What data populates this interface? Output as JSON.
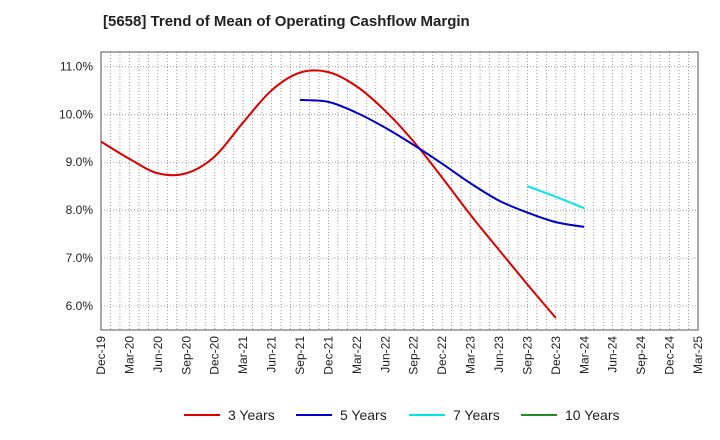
{
  "chart_data": {
    "type": "line",
    "title": "[5658]  Trend of Mean of Operating Cashflow Margin",
    "xlabel": "",
    "ylabel": "",
    "ylim": [
      5.5,
      11.3
    ],
    "yticks": [
      6.0,
      7.0,
      8.0,
      9.0,
      10.0,
      11.0
    ],
    "ytick_labels": [
      "6.0%",
      "7.0%",
      "8.0%",
      "9.0%",
      "10.0%",
      "11.0%"
    ],
    "categories": [
      "Dec-19",
      "Mar-20",
      "Jun-20",
      "Sep-20",
      "Dec-20",
      "Mar-21",
      "Jun-21",
      "Sep-21",
      "Dec-21",
      "Mar-22",
      "Jun-22",
      "Sep-22",
      "Dec-22",
      "Mar-23",
      "Jun-23",
      "Sep-23",
      "Dec-23",
      "Mar-24",
      "Jun-24",
      "Sep-24",
      "Dec-24",
      "Mar-25"
    ],
    "grid": true,
    "legend_position": "bottom",
    "series": [
      {
        "name": "3 Years",
        "color": "#dd0000",
        "values": [
          9.43,
          9.07,
          8.77,
          8.77,
          9.12,
          9.83,
          10.5,
          10.87,
          10.88,
          10.58,
          10.07,
          9.43,
          8.68,
          7.9,
          7.17,
          6.45,
          5.75,
          null,
          null,
          null,
          null,
          null
        ]
      },
      {
        "name": "5 Years",
        "color": "#0000cc",
        "values": [
          null,
          null,
          null,
          null,
          null,
          null,
          null,
          10.3,
          10.26,
          10.03,
          9.72,
          9.36,
          8.97,
          8.56,
          8.2,
          7.95,
          7.75,
          7.65,
          null,
          null,
          null,
          null
        ]
      },
      {
        "name": "7 Years",
        "color": "#00e5e5",
        "values": [
          null,
          null,
          null,
          null,
          null,
          null,
          null,
          null,
          null,
          null,
          null,
          null,
          null,
          null,
          null,
          8.5,
          8.28,
          8.04,
          null,
          null,
          null,
          null
        ]
      },
      {
        "name": "10 Years",
        "color": "#228b22",
        "values": [
          null,
          null,
          null,
          null,
          null,
          null,
          null,
          null,
          null,
          null,
          null,
          null,
          null,
          null,
          null,
          null,
          null,
          null,
          null,
          null,
          null,
          null
        ]
      }
    ]
  }
}
